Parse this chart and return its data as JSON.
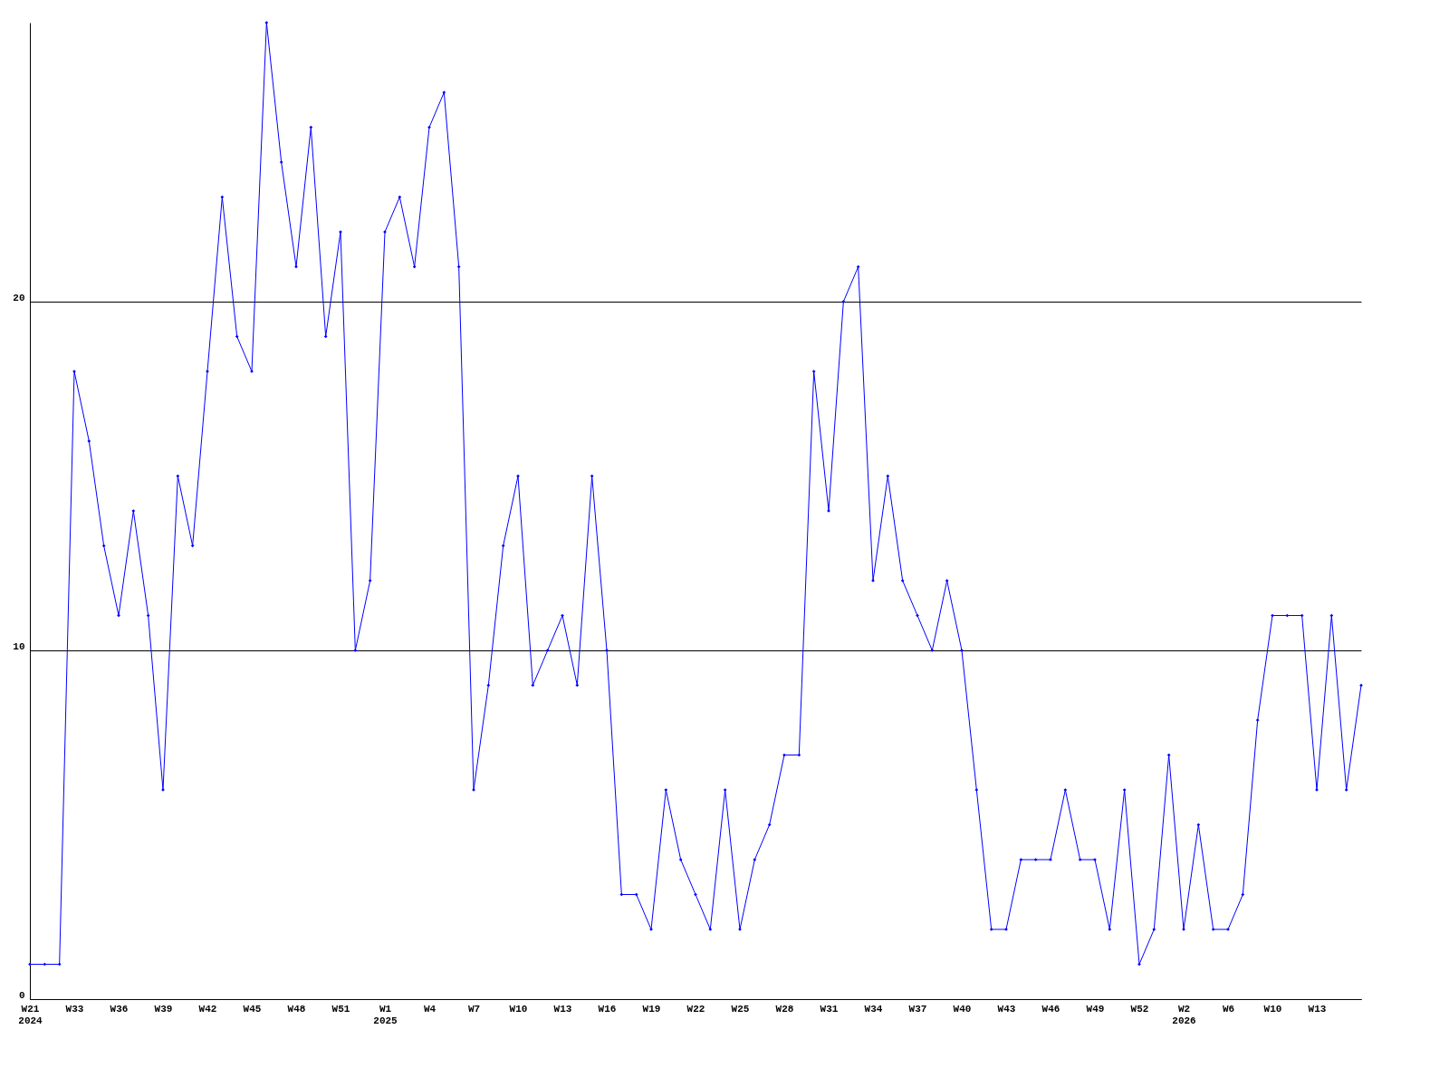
{
  "chart_data": {
    "type": "line",
    "categories": [
      "W21\n2024",
      null,
      null,
      "W33",
      null,
      null,
      "W36",
      null,
      null,
      "W39",
      null,
      null,
      "W42",
      null,
      null,
      "W45",
      null,
      null,
      "W48",
      null,
      null,
      "W51",
      null,
      null,
      "W1\n2025",
      null,
      null,
      "W4",
      null,
      null,
      "W7",
      null,
      null,
      "W10",
      null,
      null,
      "W13",
      null,
      null,
      "W16",
      null,
      null,
      "W19",
      null,
      null,
      "W22",
      null,
      null,
      "W25",
      null,
      null,
      "W28",
      null,
      null,
      "W31",
      null,
      null,
      "W34",
      null,
      null,
      "W37",
      null,
      null,
      "W40",
      null,
      null,
      "W43",
      null,
      null,
      "W46",
      null,
      null,
      "W49",
      null,
      null,
      "W52",
      null,
      null,
      "W2\n2026",
      null,
      null,
      "W6",
      null,
      null,
      "W10",
      null,
      null,
      "W13",
      null,
      null,
      null
    ],
    "series": [
      {
        "color": "#0000ff",
        "values": [
          1,
          1,
          1,
          18,
          16,
          13,
          11,
          14,
          11,
          6,
          15,
          13,
          18,
          23,
          19,
          18,
          28,
          24,
          21,
          25,
          19,
          22,
          10,
          12,
          22,
          23,
          21,
          25,
          26,
          21,
          6,
          9,
          13,
          15,
          9,
          10,
          11,
          9,
          15,
          10,
          3,
          3,
          2,
          6,
          4,
          3,
          2,
          6,
          2,
          4,
          5,
          7,
          7,
          18,
          14,
          20,
          21,
          12,
          15,
          12,
          11,
          10,
          12,
          10,
          6,
          2,
          2,
          4,
          4,
          4,
          6,
          4,
          4,
          2,
          6,
          1,
          2,
          7,
          2,
          5,
          2,
          2,
          3,
          8,
          11,
          11,
          11,
          6,
          11,
          6,
          9
        ]
      }
    ],
    "ylim": [
      0,
      28
    ],
    "yticks": [
      0,
      10,
      20
    ],
    "grid": "y",
    "marker": "diamond",
    "line_style": "solid"
  }
}
